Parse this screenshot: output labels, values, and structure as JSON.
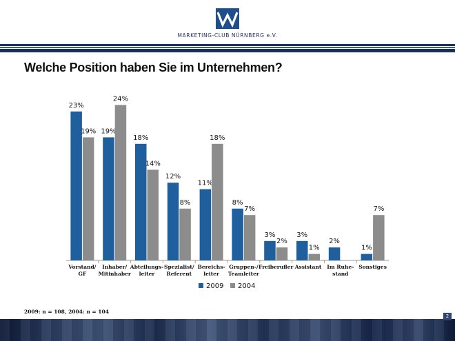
{
  "header": {
    "organization": "MARKETING-CLUB NÜRNBERG e.V.",
    "logo_icon": "mcn-logo-icon",
    "brand_color": "#1f4e8c"
  },
  "page_title": "Welche Position haben Sie im Unternehmen?",
  "footnote": "2009: n = 108, 2004: n = 104",
  "page_number": "2",
  "chart_data": {
    "type": "bar",
    "title": "",
    "xlabel": "",
    "ylabel": "",
    "categories": [
      [
        "Vorstand/",
        "GF"
      ],
      [
        "Inhaber/",
        "Mitinhaber"
      ],
      [
        "Abteilungs-",
        "leiter"
      ],
      [
        "Spezialist/",
        "Referent"
      ],
      [
        "Bereichs-",
        "leiter"
      ],
      [
        "Gruppen-/",
        "Teamleiter"
      ],
      [
        "Freiberufler"
      ],
      [
        "Assistant"
      ],
      [
        "Im Ruhe-",
        "stand"
      ],
      [
        "Sonstiges"
      ]
    ],
    "series": [
      {
        "name": "2009",
        "color": "#1f5f9e",
        "values": [
          23,
          19,
          18,
          12,
          11,
          8,
          3,
          3,
          2,
          1
        ]
      },
      {
        "name": "2004",
        "color": "#8c8c8c",
        "values": [
          19,
          24,
          14,
          8,
          18,
          7,
          2,
          1,
          null,
          7
        ]
      }
    ],
    "value_suffix": "%",
    "ylim": [
      0,
      25
    ],
    "grid": false,
    "legend_position": "bottom"
  }
}
